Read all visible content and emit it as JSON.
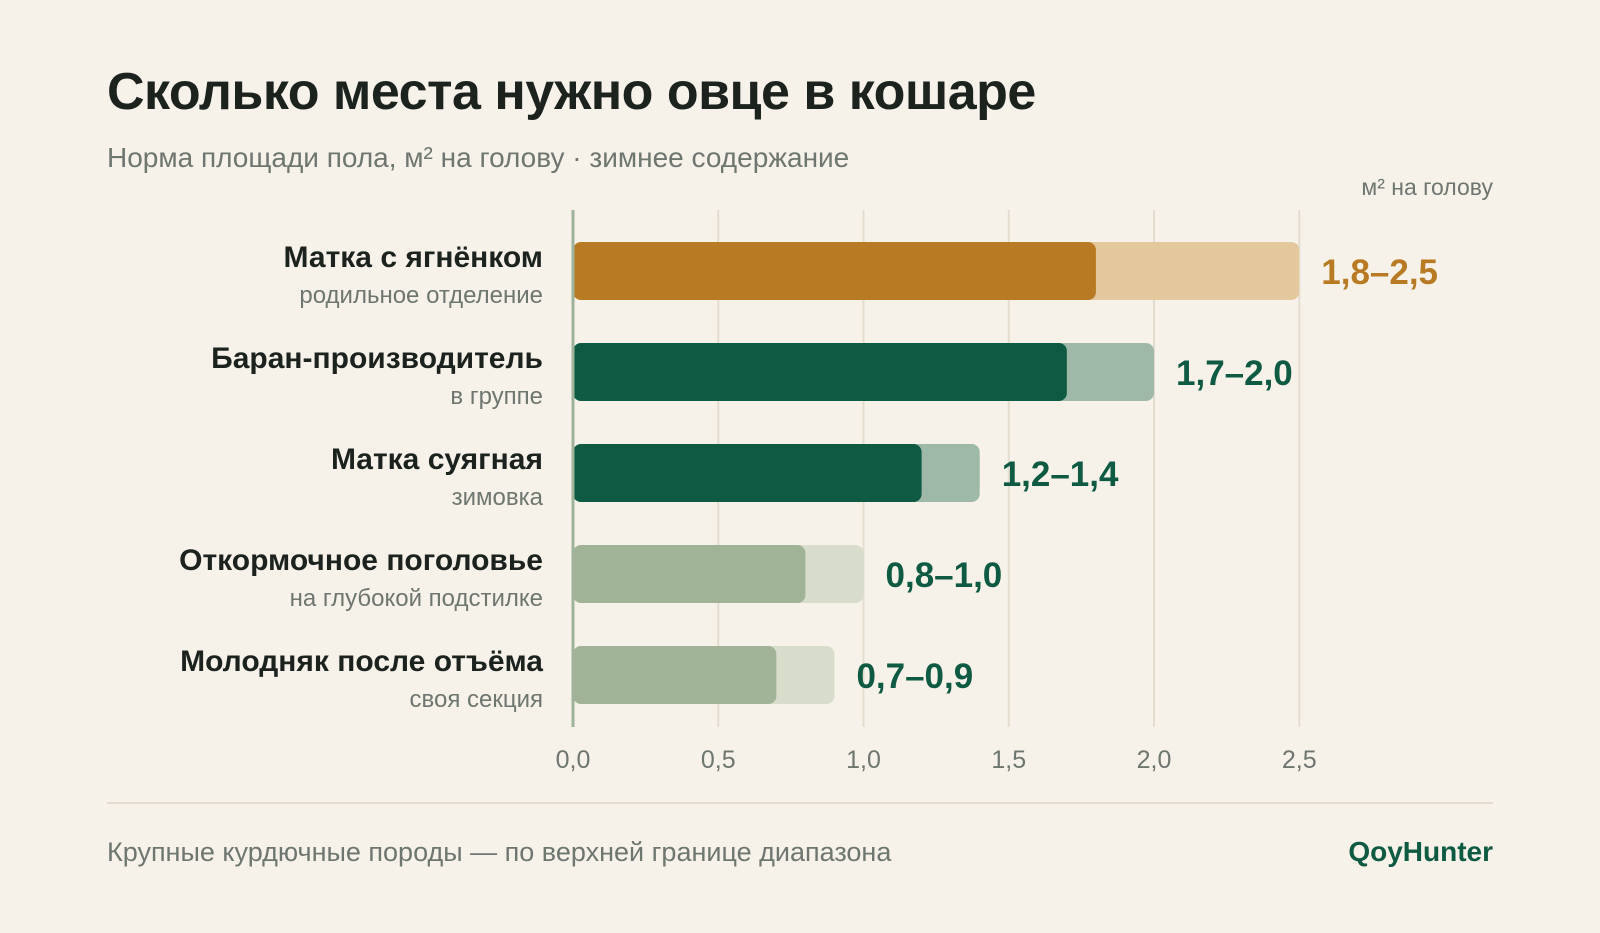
{
  "header": {
    "title": "Сколько места нужно овце в кошаре",
    "subtitle": "Норма площади пола, м² на голову · зимнее содержание",
    "unit_label": "м² на голову"
  },
  "footer": {
    "note": "Крупные курдючные породы — по верхней границе диапазона",
    "brand": "QoyHunter"
  },
  "colors": {
    "background": "#f6f2ea",
    "amber": "#b87a22",
    "amber_light": "#e3c79d",
    "green": "#0e5a42",
    "green_light": "#9fb9a9",
    "sage": "#a1b396",
    "sage_light": "#d8dccb",
    "grid": "#e3ddcf",
    "axis": "#9fb39a"
  },
  "chart_data": {
    "type": "bar",
    "orientation": "horizontal",
    "stacked_range": true,
    "xlim": [
      0,
      2.5
    ],
    "ticks": [
      {
        "value": 0,
        "label": "0,0"
      },
      {
        "value": 0.5,
        "label": "0,5"
      },
      {
        "value": 1.0,
        "label": "1,0"
      },
      {
        "value": 1.5,
        "label": "1,5"
      },
      {
        "value": 2.0,
        "label": "2,0"
      },
      {
        "value": 2.5,
        "label": "2,5"
      }
    ],
    "grid": true,
    "rows": [
      {
        "label": "Матка с ягнёнком",
        "sublabel": "родильное отделение",
        "min": 1.8,
        "max": 2.5,
        "range_label": "1,8–2,5",
        "palette": "amber"
      },
      {
        "label": "Баран-производитель",
        "sublabel": "в группе",
        "min": 1.7,
        "max": 2.0,
        "range_label": "1,7–2,0",
        "palette": "green"
      },
      {
        "label": "Матка суягная",
        "sublabel": "зимовка",
        "min": 1.2,
        "max": 1.4,
        "range_label": "1,2–1,4",
        "palette": "green"
      },
      {
        "label": "Откормочное поголовье",
        "sublabel": "на глубокой подстилке",
        "min": 0.8,
        "max": 1.0,
        "range_label": "0,8–1,0",
        "palette": "sage"
      },
      {
        "label": "Молодняк после отъёма",
        "sublabel": "своя секция",
        "min": 0.7,
        "max": 0.9,
        "range_label": "0,7–0,9",
        "palette": "sage"
      }
    ]
  }
}
